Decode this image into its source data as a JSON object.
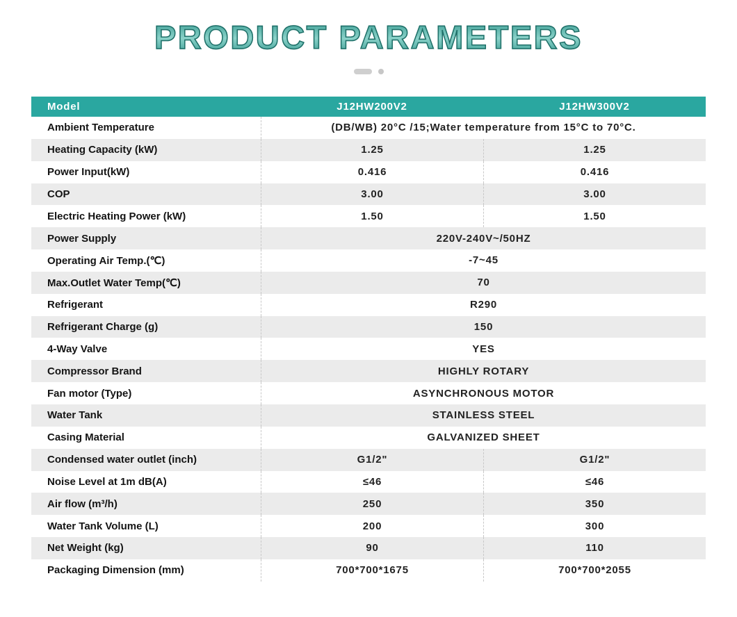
{
  "title": "PRODUCT PARAMETERS",
  "colors": {
    "accent_teal": "#2aa7a0",
    "row_shade": "#ebebeb",
    "title_teal": "#2f948b"
  },
  "table": {
    "header": {
      "model_label": "Model",
      "col1": "J12HW200V2",
      "col2": "J12HW300V2"
    },
    "rows": [
      {
        "label": "Ambient Temperature",
        "span": "(DB/WB) 20°C /15;Water temperature from 15°C to 70°C."
      },
      {
        "label": "Heating Capacity (kW)",
        "v1": "1.25",
        "v2": "1.25"
      },
      {
        "label": "Power Input(kW)",
        "v1": "0.416",
        "v2": "0.416"
      },
      {
        "label": "COP",
        "v1": "3.00",
        "v2": "3.00"
      },
      {
        "label": "Electric Heating Power (kW)",
        "v1": "1.50",
        "v2": "1.50"
      },
      {
        "label": "Power Supply",
        "span": "220V-240V~/50HZ"
      },
      {
        "label": "Operating Air Temp.(℃)",
        "span": "-7~45"
      },
      {
        "label": "Max.Outlet Water Temp(℃)",
        "span": "70"
      },
      {
        "label": "Refrigerant",
        "span": "R290"
      },
      {
        "label": "Refrigerant Charge (g)",
        "span": "150"
      },
      {
        "label": "4-Way Valve",
        "span": "YES"
      },
      {
        "label": "Compressor Brand",
        "span": "HIGHLY ROTARY"
      },
      {
        "label": "Fan motor (Type)",
        "span": "ASYNCHRONOUS MOTOR"
      },
      {
        "label": "Water Tank",
        "span": "STAINLESS STEEL"
      },
      {
        "label": "Casing Material",
        "span": "GALVANIZED SHEET"
      },
      {
        "label": "Condensed water outlet (inch)",
        "v1": "G1/2\"",
        "v2": "G1/2\""
      },
      {
        "label": "Noise Level at 1m dB(A)",
        "v1": "≤46",
        "v2": "≤46"
      },
      {
        "label": "Air flow (m³/h)",
        "v1": "250",
        "v2": "350"
      },
      {
        "label": "Water Tank Volume (L)",
        "v1": "200",
        "v2": "300"
      },
      {
        "label": "Net Weight (kg)",
        "v1": "90",
        "v2": "110"
      },
      {
        "label": "Packaging Dimension (mm)",
        "v1": "700*700*1675",
        "v2": "700*700*2055"
      }
    ]
  }
}
